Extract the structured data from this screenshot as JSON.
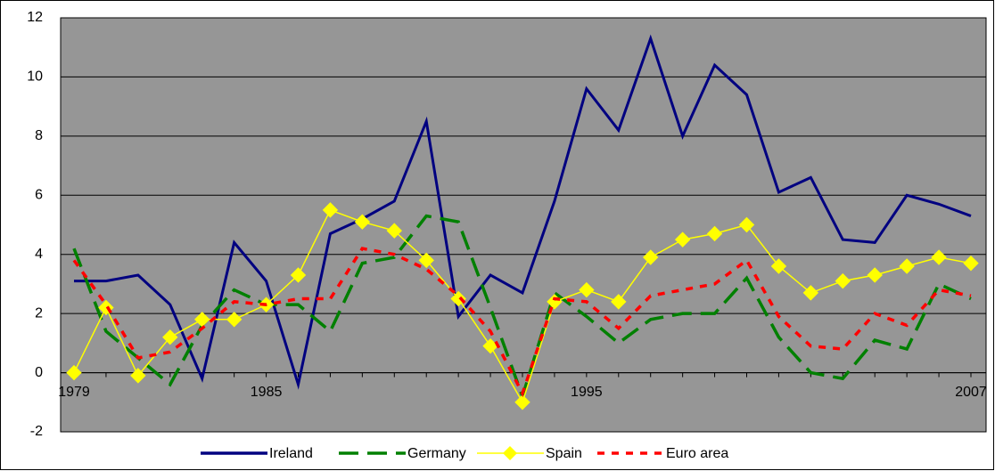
{
  "chart_data": {
    "type": "line",
    "categories": [
      "1979",
      null,
      null,
      null,
      null,
      null,
      "1985",
      null,
      null,
      null,
      null,
      null,
      null,
      null,
      null,
      null,
      "1995",
      null,
      null,
      null,
      null,
      null,
      null,
      null,
      null,
      null,
      null,
      null,
      "2007"
    ],
    "series": [
      {
        "name": "Ireland",
        "color": "#000080",
        "style": "solid",
        "values": [
          3.1,
          3.1,
          3.3,
          2.3,
          -0.2,
          4.4,
          3.1,
          -0.4,
          4.7,
          5.2,
          5.8,
          8.5,
          1.9,
          3.3,
          2.7,
          5.8,
          9.6,
          8.2,
          11.3,
          8.0,
          10.4,
          9.4,
          6.1,
          6.6,
          4.5,
          4.4,
          6.0,
          5.7,
          5.3
        ]
      },
      {
        "name": "Germany",
        "color": "#008000",
        "style": "dashed",
        "values": [
          4.2,
          1.4,
          0.5,
          -0.4,
          1.6,
          2.8,
          2.3,
          2.3,
          1.4,
          3.7,
          3.9,
          5.3,
          5.1,
          2.2,
          -0.8,
          2.7,
          1.9,
          1.0,
          1.8,
          2.0,
          2.0,
          3.2,
          1.2,
          0.0,
          -0.2,
          1.1,
          0.8,
          3.0,
          2.5
        ]
      },
      {
        "name": "Spain",
        "color": "#ffff00",
        "style": "solid",
        "marker": "diamond",
        "values": [
          0.0,
          2.2,
          -0.1,
          1.2,
          1.8,
          1.8,
          2.3,
          3.3,
          5.5,
          5.1,
          4.8,
          3.8,
          2.5,
          0.9,
          -1.0,
          2.4,
          2.8,
          2.4,
          3.9,
          4.5,
          4.7,
          5.0,
          3.6,
          2.7,
          3.1,
          3.3,
          3.6,
          3.9,
          3.7
        ]
      },
      {
        "name": "Euro area",
        "color": "#ff0000",
        "style": "dotted",
        "values": [
          3.8,
          2.3,
          0.5,
          0.7,
          1.5,
          2.4,
          2.3,
          2.5,
          2.5,
          4.2,
          4.0,
          3.5,
          2.6,
          1.4,
          -0.7,
          2.5,
          2.4,
          1.5,
          2.6,
          2.8,
          3.0,
          3.8,
          1.9,
          0.9,
          0.8,
          2.0,
          1.6,
          2.8,
          2.6
        ]
      }
    ],
    "ylim": [
      -2,
      12
    ],
    "yticks": [
      -2,
      0,
      2,
      4,
      6,
      8,
      10,
      12
    ],
    "grid": true,
    "legend": "bottom"
  }
}
